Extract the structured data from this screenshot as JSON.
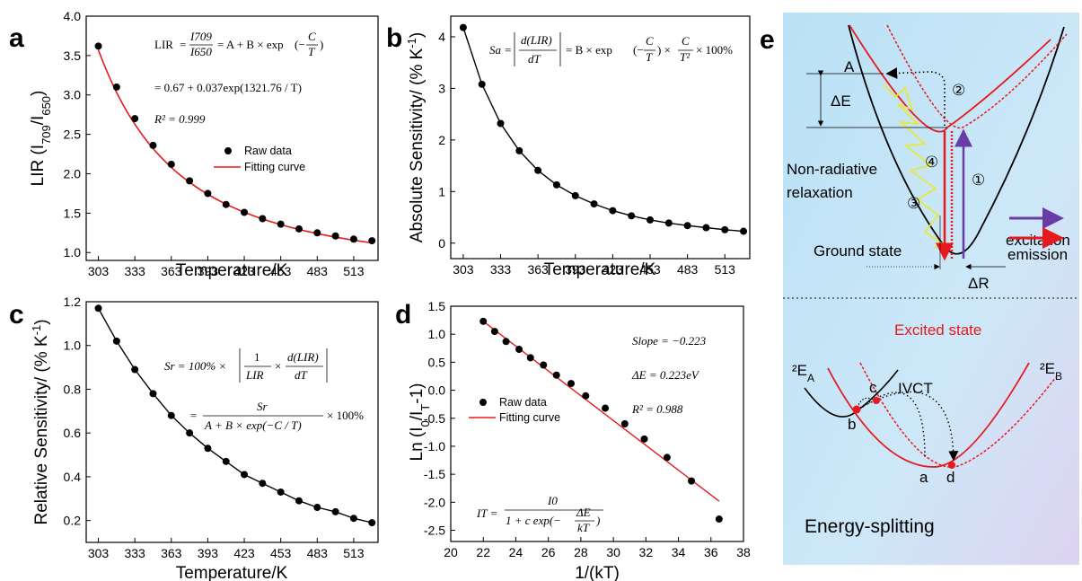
{
  "panels": {
    "a": "a",
    "b": "b",
    "c": "c",
    "d": "d",
    "e": "e"
  },
  "chart_data": [
    {
      "panel": "a",
      "type": "scatter",
      "xlabel": "Temperature/K",
      "ylabel": "LIR (I709/I650)",
      "xlim": [
        293,
        533
      ],
      "ylim": [
        0.9,
        4.0
      ],
      "xticks": [
        "303",
        "333",
        "363",
        "393",
        "423",
        "453",
        "483",
        "513"
      ],
      "yticks": [
        "1.0",
        "1.5",
        "2.0",
        "2.5",
        "3.0",
        "3.5",
        "4.0"
      ],
      "series": [
        {
          "name": "Raw data",
          "kind": "points",
          "x": [
            303,
            318,
            333,
            348,
            363,
            378,
            393,
            408,
            423,
            438,
            453,
            468,
            483,
            498,
            513,
            528
          ],
          "y": [
            3.62,
            3.1,
            2.7,
            2.36,
            2.12,
            1.91,
            1.75,
            1.61,
            1.51,
            1.43,
            1.36,
            1.3,
            1.25,
            1.21,
            1.17,
            1.15
          ]
        },
        {
          "name": "Fitting curve",
          "kind": "fit",
          "model": "0.67 + 0.037*exp(1321.76/T)",
          "x_range": [
            303,
            528
          ]
        }
      ],
      "equations": [
        "LIR = I709/I650 = A + B × exp(−C/T)",
        "= 0.67 + 0.037exp(1321.76 / T)",
        "R² = 0.999"
      ]
    },
    {
      "panel": "b",
      "type": "line",
      "xlabel": "Temperature/K",
      "ylabel": "Absolute Sensitivity/ (% K⁻¹)",
      "xlim": [
        293,
        533
      ],
      "ylim": [
        -0.3,
        4.4
      ],
      "xticks": [
        "303",
        "333",
        "363",
        "393",
        "423",
        "453",
        "483",
        "513"
      ],
      "yticks": [
        "0",
        "1",
        "2",
        "3",
        "4"
      ],
      "series": [
        {
          "x": [
            303,
            318,
            333,
            348,
            363,
            378,
            393,
            408,
            423,
            438,
            453,
            468,
            483,
            498,
            513,
            528
          ],
          "y": [
            4.18,
            3.08,
            2.32,
            1.79,
            1.41,
            1.13,
            0.92,
            0.76,
            0.63,
            0.53,
            0.45,
            0.39,
            0.34,
            0.3,
            0.26,
            0.23
          ]
        }
      ],
      "equations": [
        "Sa = |d(LIR)/dT| = B × exp(−C/T) × C/T² × 100%"
      ]
    },
    {
      "panel": "c",
      "type": "line",
      "xlabel": "Temperature/K",
      "ylabel": "Relative Sensitivity/ (% K⁻¹)",
      "xlim": [
        293,
        533
      ],
      "ylim": [
        0.1,
        1.2
      ],
      "xticks": [
        "303",
        "333",
        "363",
        "393",
        "423",
        "453",
        "483",
        "513"
      ],
      "yticks": [
        "0.2",
        "0.4",
        "0.6",
        "0.8",
        "1.0",
        "1.2"
      ],
      "series": [
        {
          "x": [
            303,
            318,
            333,
            348,
            363,
            378,
            393,
            408,
            423,
            438,
            453,
            468,
            483,
            498,
            513,
            528
          ],
          "y": [
            1.17,
            1.02,
            0.89,
            0.78,
            0.68,
            0.6,
            0.53,
            0.47,
            0.41,
            0.37,
            0.33,
            0.29,
            0.26,
            0.24,
            0.21,
            0.19
          ]
        }
      ],
      "equations": [
        "Sr = 100% × |1/LIR × d(LIR)/dT|",
        "= Sr / (A + B × exp(−C / T)) × 100%"
      ]
    },
    {
      "panel": "d",
      "type": "scatter",
      "xlabel": "1/(kT)",
      "ylabel": "Ln (I0/IT−1)",
      "xlim": [
        20,
        38
      ],
      "ylim": [
        -2.7,
        1.5
      ],
      "xticks": [
        "20",
        "22",
        "24",
        "26",
        "28",
        "30",
        "32",
        "34",
        "36",
        "38"
      ],
      "yticks": [
        "1.5",
        "1.0",
        "0.5",
        "0.0",
        "-0.5",
        "-1.0",
        "-1.5",
        "-2.0",
        "-2.5"
      ],
      "series": [
        {
          "name": "Raw data",
          "kind": "points",
          "x": [
            22.0,
            22.7,
            23.4,
            24.2,
            24.9,
            25.7,
            26.5,
            27.4,
            28.3,
            29.5,
            30.7,
            31.9,
            33.3,
            34.8,
            36.5
          ],
          "y": [
            1.23,
            1.05,
            0.87,
            0.73,
            0.58,
            0.45,
            0.27,
            0.12,
            -0.1,
            -0.32,
            -0.6,
            -0.87,
            -1.2,
            -1.62,
            -2.3
          ]
        },
        {
          "name": "Fitting curve",
          "kind": "line",
          "x": [
            22.0,
            36.5
          ],
          "y": [
            1.23,
            -1.98
          ]
        }
      ],
      "equations": [
        "Slope = −0.223",
        "ΔE = 0.223eV",
        "R² = 0.988",
        "IT = I0 / (1 + c exp(−ΔE/kT))"
      ]
    }
  ],
  "legend": {
    "raw": "Raw data",
    "fit": "Fitting curve"
  },
  "eq": {
    "a_lir": "LIR",
    "a_i709": "I709",
    "a_i650": "I650",
    "a_rhs": "= A + B × exp",
    "a_line2": "= 0.67 + 0.037exp(1321.76 / T)",
    "a_r2": "R² = 0.999",
    "b_sa": "Sa =",
    "b_num": "d(LIR)",
    "b_den": "dT",
    "b_rhs": "= B × exp",
    "b_frac_num": "C",
    "b_frac_den": "T²",
    "b_tail": "× 100%",
    "c_sr": "Sr = 100% ×",
    "c_line2_num": "Sr",
    "c_line2_den": "A + B × exp(−C / T)",
    "c_tail": "× 100%",
    "d_slope": "Slope = −0.223",
    "d_de": "ΔE = 0.223eV",
    "d_r2": "R² = 0.988",
    "d_it": "IT =",
    "d_i0": "I0",
    "d_den": "1 + c exp(−",
    "d_de_frac": "ΔE",
    "d_kt": "kT"
  },
  "diagram_e": {
    "A": "A",
    "dE": "ΔE",
    "n1": "①",
    "n2": "②",
    "n3": "③",
    "n4": "④",
    "nonrad1": "Non-radiative",
    "nonrad2": "relaxation",
    "ground": "Ground state",
    "excitation": "excitation",
    "emission": "emission",
    "dR": "ΔR",
    "excited": "Excited state",
    "E_A": "²EA",
    "E_B": "²EB",
    "IVCT": "IVCT",
    "a": "a",
    "b": "b",
    "c": "c",
    "d": "d",
    "split": "Energy-splitting"
  },
  "colors": {
    "fit": "#e8191c",
    "line": "#000000",
    "excitation": "#6a3ba8",
    "emission": "#e8191c",
    "yellow": "#e8e83a",
    "panel_e_bg": "#bfe3f5",
    "excited_text": "#e8191c"
  }
}
